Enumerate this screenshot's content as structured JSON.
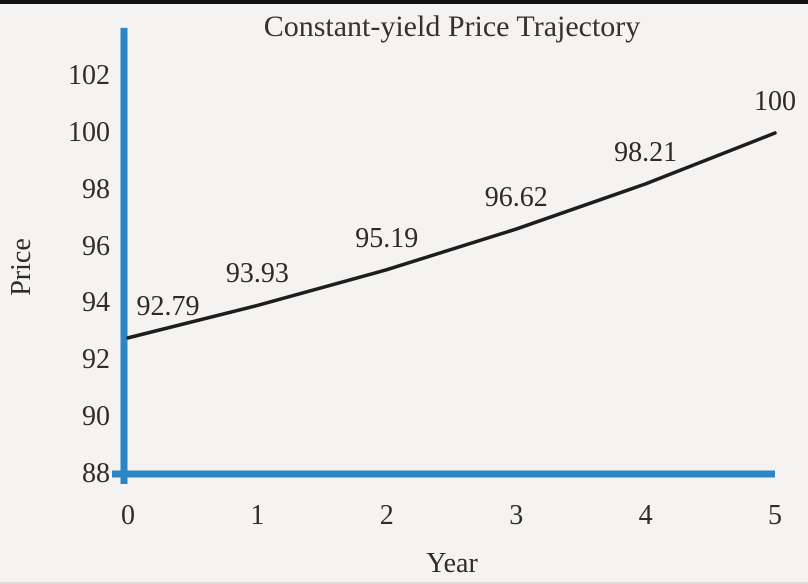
{
  "page": {
    "background_color": "#f4f3f1",
    "top_border_color": "#121212",
    "text_color": "#2e2d2b"
  },
  "chart_data": {
    "type": "line",
    "title": "Constant-yield Price Trajectory",
    "xlabel": "Year",
    "ylabel": "Price",
    "x": [
      0,
      1,
      2,
      3,
      4,
      5
    ],
    "series": [
      {
        "name": "Constant-yield price",
        "values": [
          92.79,
          93.93,
          95.19,
          96.62,
          98.21,
          100
        ]
      }
    ],
    "point_labels": [
      "92.79",
      "93.93",
      "95.19",
      "96.62",
      "98.21",
      "100"
    ],
    "xticks": [
      "0",
      "1",
      "2",
      "3",
      "4",
      "5"
    ],
    "yticks": [
      "88",
      "90",
      "92",
      "94",
      "96",
      "98",
      "100",
      "102"
    ],
    "xlim": [
      0,
      5
    ],
    "ylim": [
      88,
      103.7
    ],
    "grid": false,
    "legend": false,
    "axis_color": "#2b86c3",
    "line_color": "#1d1d1d"
  }
}
